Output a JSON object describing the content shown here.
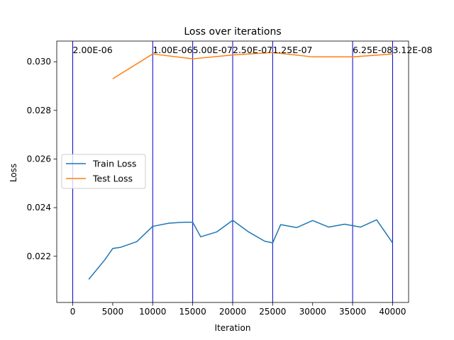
{
  "chart_data": {
    "type": "line",
    "title": "Loss over iterations",
    "xlabel": "Iteration",
    "ylabel": "Loss",
    "xlim": [
      -2000,
      42000
    ],
    "ylim": [
      0.0201,
      0.03085
    ],
    "x_ticks": [
      0,
      5000,
      10000,
      15000,
      20000,
      25000,
      30000,
      35000,
      40000
    ],
    "y_ticks": [
      0.022,
      0.024,
      0.026,
      0.028,
      0.03
    ],
    "x_tick_labels": [
      "0",
      "5000",
      "10000",
      "15000",
      "20000",
      "25000",
      "30000",
      "35000",
      "40000"
    ],
    "y_tick_labels": [
      "0.022",
      "0.024",
      "0.026",
      "0.028",
      "0.030"
    ],
    "grid": false,
    "legend_position": "center-left",
    "series": [
      {
        "name": "Train Loss",
        "color": "#1f77b4",
        "x": [
          2000,
          4000,
          5000,
          6000,
          8000,
          10000,
          12000,
          14000,
          15000,
          16000,
          18000,
          20000,
          22000,
          24000,
          25000,
          26000,
          28000,
          30000,
          32000,
          34000,
          36000,
          38000,
          40000
        ],
        "y": [
          0.02105,
          0.02185,
          0.02232,
          0.02237,
          0.0226,
          0.02323,
          0.02336,
          0.0234,
          0.0234,
          0.0228,
          0.023,
          0.02348,
          0.023,
          0.02262,
          0.02255,
          0.0233,
          0.02318,
          0.02347,
          0.0232,
          0.02332,
          0.0232,
          0.0235,
          0.02255
        ]
      },
      {
        "name": "Test Loss",
        "color": "#ff7f0e",
        "x": [
          5000,
          10000,
          15000,
          20000,
          25000,
          30000,
          35000,
          40000
        ],
        "y": [
          0.0293,
          0.03032,
          0.03012,
          0.03028,
          0.03038,
          0.0302,
          0.0302,
          0.03032
        ]
      }
    ],
    "annotations": [
      {
        "x": 0,
        "label": "2.00E-06"
      },
      {
        "x": 10000,
        "label": "1.00E-06"
      },
      {
        "x": 15000,
        "label": "5.00E-07"
      },
      {
        "x": 20000,
        "label": "2.50E-07"
      },
      {
        "x": 25000,
        "label": "1.25E-07"
      },
      {
        "x": 35000,
        "label": "6.25E-08"
      },
      {
        "x": 40000,
        "label": "3.12E-08"
      }
    ],
    "annotation_color": "#0000cc"
  }
}
